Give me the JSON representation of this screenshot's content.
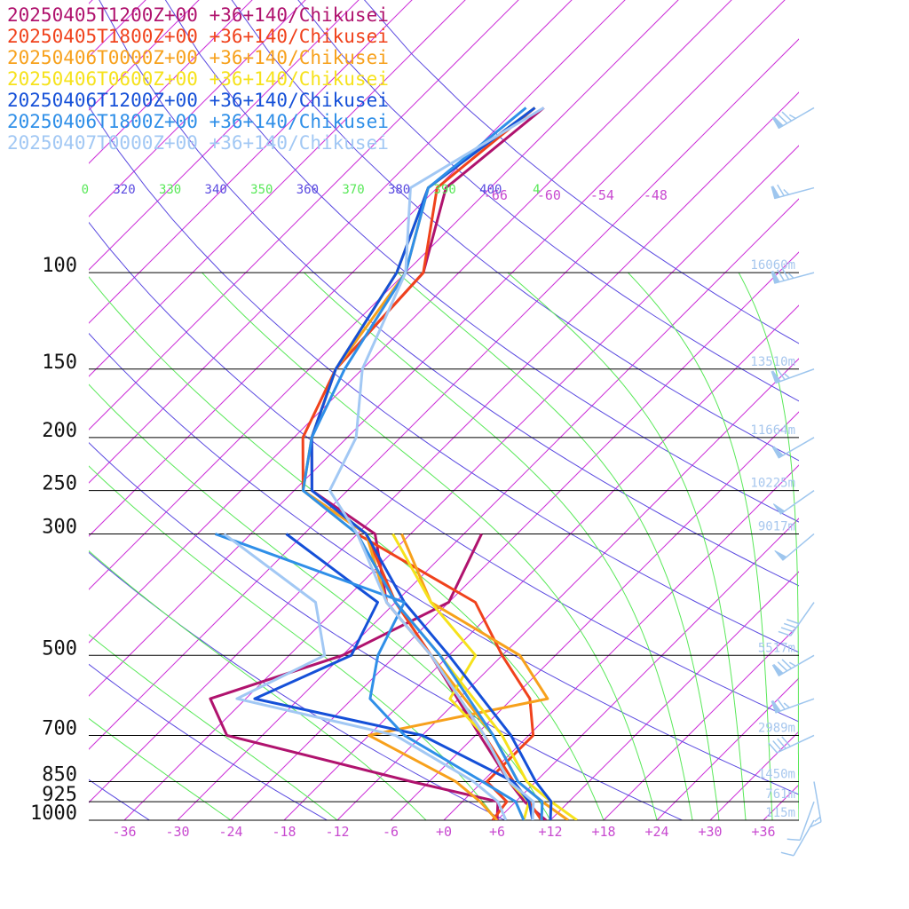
{
  "legend": [
    {
      "label": "20250405T1200Z+00 +36+140/Chikusei",
      "color": "#b0136e"
    },
    {
      "label": "20250405T1800Z+00 +36+140/Chikusei",
      "color": "#f0421c"
    },
    {
      "label": "20250406T0000Z+00 +36+140/Chikusei",
      "color": "#f7a11c"
    },
    {
      "label": "20250406T0600Z+00 +36+140/Chikusei",
      "color": "#f6e21c"
    },
    {
      "label": "20250406T1200Z+00 +36+140/Chikusei",
      "color": "#1550d8"
    },
    {
      "label": "20250406T1800Z+00 +36+140/Chikusei",
      "color": "#2f8fe8"
    },
    {
      "label": "20250407T0000Z+00 +36+140/Chikusei",
      "color": "#a2c8f4"
    }
  ],
  "colors": {
    "dry_adiabat": "#5a4ae0",
    "moist_adiabat": "#58e858",
    "isotherm": "#cc2fd8",
    "isotherm_label": "#c84ad0",
    "height_label": "#a7c7ee",
    "wind_barb": "#9ec6ee"
  },
  "chart_data": {
    "type": "line",
    "title": "",
    "pressure_levels": [
      "100",
      "150",
      "200",
      "250",
      "300",
      "500",
      "700",
      "850",
      "925",
      "1000"
    ],
    "height_labels": [
      {
        "p": 100,
        "text": "16060m"
      },
      {
        "p": 150,
        "text": "13510m"
      },
      {
        "p": 200,
        "text": "11664m"
      },
      {
        "p": 250,
        "text": "10225m"
      },
      {
        "p": 300,
        "text": "9017m"
      },
      {
        "p": 500,
        "text": "5517m"
      },
      {
        "p": 700,
        "text": "2989m"
      },
      {
        "p": 850,
        "text": "1450m"
      },
      {
        "p": 925,
        "text": "761m"
      },
      {
        "p": 1000,
        "text": "115m"
      }
    ],
    "temperature_ticks": [
      "-36",
      "-30",
      "-24",
      "-18",
      "-12",
      "-6",
      "+0",
      "+6",
      "+12",
      "+18",
      "+24",
      "+30",
      "+36"
    ],
    "upper_isotherm_labels": [
      "-66",
      "-60",
      "-54",
      "-48"
    ],
    "theta_labels": [
      {
        "text": "0",
        "kind": "moist"
      },
      {
        "text": "320",
        "kind": "dry"
      },
      {
        "text": "330",
        "kind": "moist"
      },
      {
        "text": "340",
        "kind": "dry"
      },
      {
        "text": "350",
        "kind": "moist"
      },
      {
        "text": "360",
        "kind": "dry"
      },
      {
        "text": "370",
        "kind": "moist"
      },
      {
        "text": "380",
        "kind": "dry"
      },
      {
        "text": "390",
        "kind": "moist"
      },
      {
        "text": "400",
        "kind": "dry"
      },
      {
        "text": "4",
        "kind": "moist"
      }
    ],
    "series": [
      {
        "name": "20250405T1200Z+00 +36+140/Chikusei",
        "color": "#b0136e",
        "temperature": [
          [
            1000,
            11.5
          ],
          [
            925,
            7
          ],
          [
            850,
            3
          ],
          [
            700,
            -5.5
          ],
          [
            500,
            -20
          ],
          [
            400,
            -31
          ],
          [
            300,
            -40
          ],
          [
            250,
            -52
          ],
          [
            200,
            -58
          ],
          [
            150,
            -63
          ],
          [
            100,
            -64
          ],
          [
            70,
            -71
          ],
          [
            50,
            -69
          ]
        ],
        "dewpoint": [
          [
            1000,
            6
          ],
          [
            925,
            4
          ],
          [
            850,
            -8
          ],
          [
            700,
            -34
          ],
          [
            600,
            -40
          ],
          [
            500,
            -30
          ],
          [
            400,
            -24
          ],
          [
            300,
            -28
          ]
        ]
      },
      {
        "name": "20250405T1800Z+00 +36+140/Chikusei",
        "color": "#f0421c",
        "temperature": [
          [
            1000,
            11
          ],
          [
            925,
            7.5
          ],
          [
            850,
            3.5
          ],
          [
            700,
            -5
          ],
          [
            500,
            -20
          ],
          [
            400,
            -30
          ],
          [
            300,
            -41
          ],
          [
            250,
            -53
          ],
          [
            200,
            -59
          ],
          [
            150,
            -63
          ],
          [
            100,
            -64
          ],
          [
            70,
            -72
          ],
          [
            50,
            -70
          ]
        ],
        "dewpoint": [
          [
            1000,
            5.5
          ],
          [
            925,
            5
          ],
          [
            850,
            0.5
          ],
          [
            700,
            0.5
          ],
          [
            600,
            -4
          ],
          [
            500,
            -12
          ],
          [
            400,
            -21
          ],
          [
            300,
            -42
          ]
        ]
      },
      {
        "name": "20250406T0000Z+00 +36+140/Chikusei",
        "color": "#f7a11c",
        "temperature": [
          [
            1000,
            14
          ],
          [
            925,
            9
          ],
          [
            850,
            4
          ],
          [
            700,
            -4
          ],
          [
            500,
            -20
          ],
          [
            400,
            -31
          ],
          [
            300,
            -41
          ],
          [
            250,
            -53
          ],
          [
            200,
            -58
          ],
          [
            150,
            -63
          ],
          [
            100,
            -66
          ],
          [
            70,
            -73
          ],
          [
            50,
            -70
          ]
        ],
        "dewpoint": [
          [
            1000,
            6
          ],
          [
            925,
            2
          ],
          [
            850,
            -3
          ],
          [
            700,
            -18
          ],
          [
            600,
            -2
          ],
          [
            500,
            -10
          ],
          [
            400,
            -26
          ],
          [
            300,
            -37
          ]
        ]
      },
      {
        "name": "20250406T0600Z+00 +36+140/Chikusei",
        "color": "#f6e21c",
        "temperature": [
          [
            1000,
            15
          ],
          [
            925,
            10
          ],
          [
            850,
            5
          ],
          [
            700,
            -3
          ],
          [
            500,
            -19
          ],
          [
            400,
            -30
          ],
          [
            300,
            -42
          ],
          [
            250,
            -53
          ],
          [
            200,
            -58
          ],
          [
            150,
            -63
          ],
          [
            100,
            -67
          ],
          [
            70,
            -73
          ],
          [
            50,
            -70
          ]
        ],
        "dewpoint": [
          [
            1000,
            9
          ],
          [
            925,
            7.5
          ],
          [
            850,
            3
          ],
          [
            700,
            -5
          ],
          [
            600,
            -13
          ],
          [
            500,
            -15
          ],
          [
            400,
            -26
          ],
          [
            300,
            -38
          ]
        ]
      },
      {
        "name": "20250406T1200Z+00 +36+140/Chikusei",
        "color": "#1550d8",
        "temperature": [
          [
            1000,
            12
          ],
          [
            925,
            10
          ],
          [
            850,
            6
          ],
          [
            700,
            -2
          ],
          [
            500,
            -18
          ],
          [
            400,
            -29
          ],
          [
            300,
            -41
          ],
          [
            250,
            -52
          ],
          [
            200,
            -58
          ],
          [
            150,
            -63
          ],
          [
            100,
            -67
          ],
          [
            70,
            -73
          ],
          [
            50,
            -70
          ]
        ],
        "dewpoint": [
          [
            1000,
            10
          ],
          [
            925,
            7.5
          ],
          [
            850,
            3.5
          ],
          [
            700,
            -12
          ],
          [
            600,
            -35
          ],
          [
            500,
            -29
          ],
          [
            400,
            -32
          ],
          [
            300,
            -50
          ]
        ]
      },
      {
        "name": "20250406T1800Z+00 +36+140/Chikusei",
        "color": "#2f8fe8",
        "temperature": [
          [
            1000,
            11
          ],
          [
            925,
            9
          ],
          [
            850,
            4
          ],
          [
            700,
            -4
          ],
          [
            500,
            -19
          ],
          [
            400,
            -30
          ],
          [
            300,
            -42
          ],
          [
            250,
            -53
          ],
          [
            200,
            -58
          ],
          [
            150,
            -62
          ],
          [
            100,
            -66
          ],
          [
            70,
            -73
          ],
          [
            50,
            -71
          ]
        ],
        "dewpoint": [
          [
            1000,
            9
          ],
          [
            925,
            6
          ],
          [
            850,
            0
          ],
          [
            700,
            -14
          ],
          [
            600,
            -22
          ],
          [
            500,
            -26
          ],
          [
            400,
            -29
          ],
          [
            300,
            -58
          ]
        ]
      },
      {
        "name": "20250407T0000Z+00 +36+140/Chikusei",
        "color": "#a2c8f4",
        "temperature": [
          [
            1000,
            10
          ],
          [
            925,
            8
          ],
          [
            850,
            3
          ],
          [
            700,
            -5
          ],
          [
            500,
            -20
          ],
          [
            400,
            -31
          ],
          [
            300,
            -42
          ],
          [
            250,
            -50
          ],
          [
            200,
            -53
          ],
          [
            150,
            -60
          ],
          [
            100,
            -66
          ],
          [
            70,
            -75
          ],
          [
            50,
            -69
          ]
        ],
        "dewpoint": [
          [
            1000,
            7
          ],
          [
            925,
            4
          ],
          [
            850,
            -1
          ],
          [
            700,
            -15
          ],
          [
            600,
            -37
          ],
          [
            500,
            -32
          ],
          [
            400,
            -39
          ],
          [
            300,
            -57
          ]
        ]
      }
    ],
    "wind_barbs": [
      {
        "p": 50,
        "speed_kt": 85,
        "from_deg": 240
      },
      {
        "p": 70,
        "speed_kt": 75,
        "from_deg": 255
      },
      {
        "p": 100,
        "speed_kt": 85,
        "from_deg": 255
      },
      {
        "p": 150,
        "speed_kt": 75,
        "from_deg": 250
      },
      {
        "p": 200,
        "speed_kt": 60,
        "from_deg": 240
      },
      {
        "p": 250,
        "speed_kt": 50,
        "from_deg": 235
      },
      {
        "p": 300,
        "speed_kt": 50,
        "from_deg": 230
      },
      {
        "p": 400,
        "speed_kt": 40,
        "from_deg": 215
      },
      {
        "p": 500,
        "speed_kt": 85,
        "from_deg": 240
      },
      {
        "p": 600,
        "speed_kt": 75,
        "from_deg": 250
      },
      {
        "p": 700,
        "speed_kt": 40,
        "from_deg": 245
      },
      {
        "p": 850,
        "speed_kt": 15,
        "from_deg": 170
      },
      {
        "p": 925,
        "speed_kt": 10,
        "from_deg": 200
      },
      {
        "p": 1000,
        "speed_kt": 10,
        "from_deg": 210
      }
    ]
  }
}
